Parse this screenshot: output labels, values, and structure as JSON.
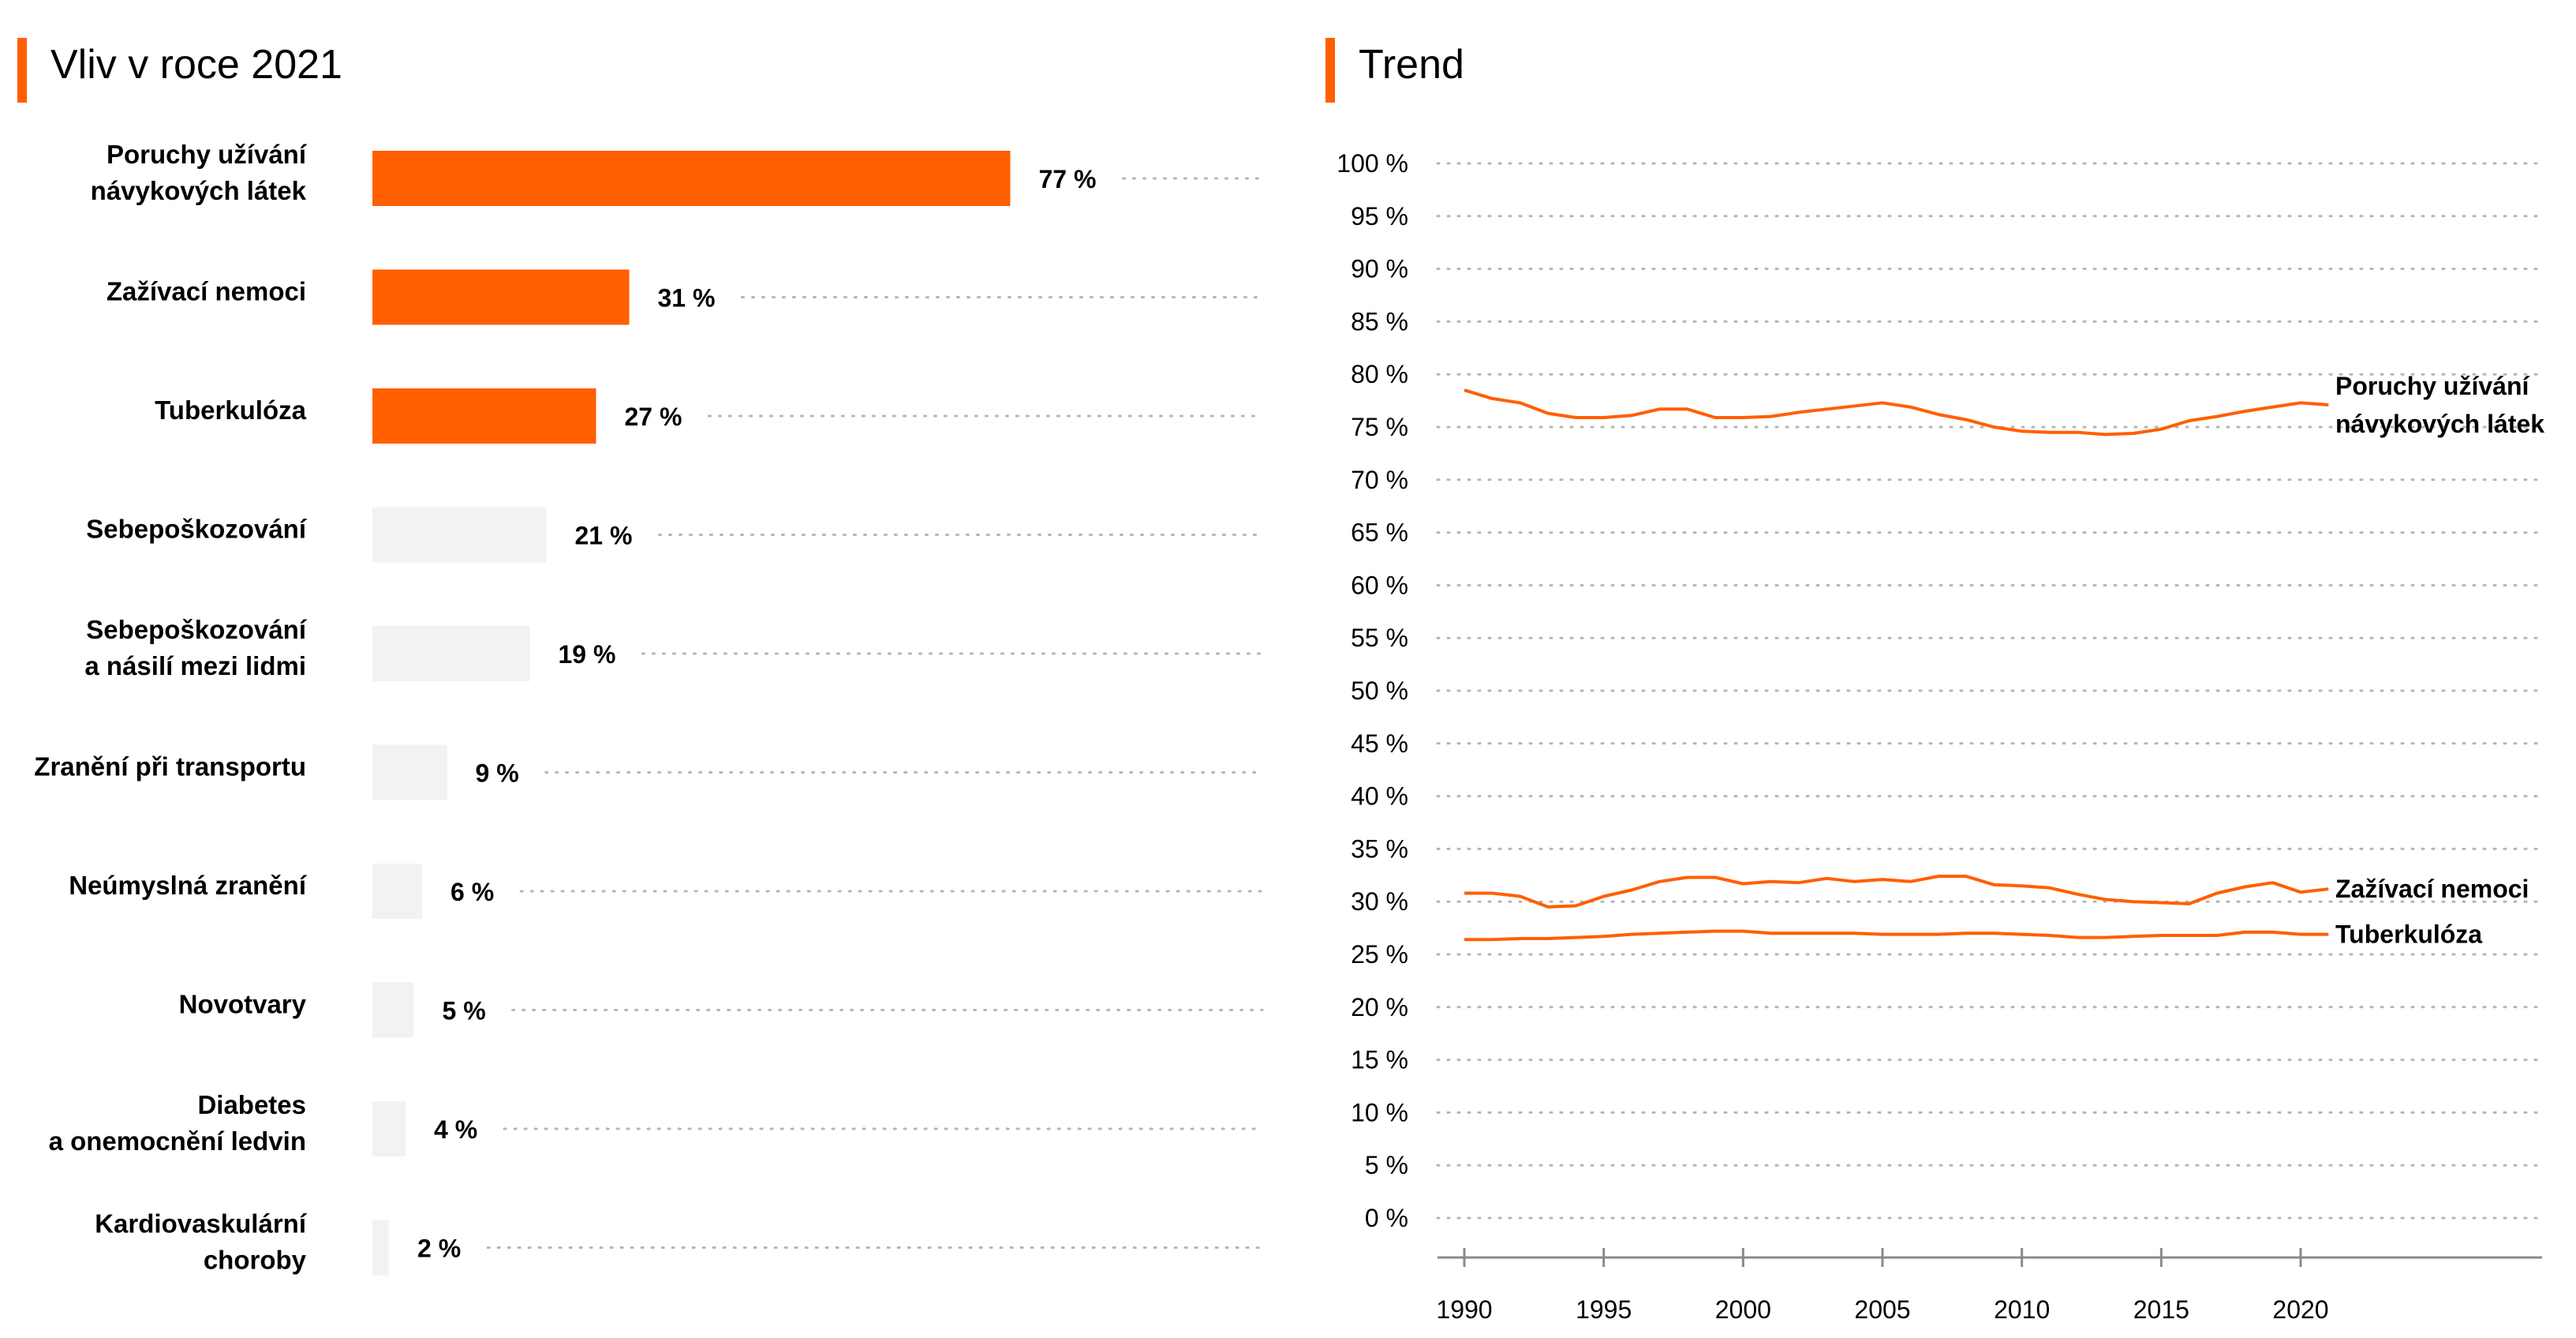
{
  "left_panel": {
    "title": "Vliv v roce 2021"
  },
  "right_panel": {
    "title": "Trend"
  },
  "colors": {
    "accent": "#ff5f00",
    "muted_bar": "#f2f2f2",
    "dots": "#b5b5b5",
    "axis": "#8a8a8a"
  },
  "chart_data": [
    {
      "type": "bar",
      "orientation": "horizontal",
      "title": "Vliv v roce 2021",
      "categories": [
        [
          "Poruchy užívání",
          "návykových látek"
        ],
        [
          "Zažívací nemoci"
        ],
        [
          "Tuberkulóza"
        ],
        [
          "Sebepoškozování"
        ],
        [
          "Sebepoškozování",
          "a násilí mezi lidmi"
        ],
        [
          "Zranění při transportu"
        ],
        [
          "Neúmyslná zranění"
        ],
        [
          "Novotvary"
        ],
        [
          "Diabetes",
          "a onemocnění ledvin"
        ],
        [
          "Kardiovaskulární",
          "choroby"
        ]
      ],
      "values": [
        77,
        31,
        27,
        21,
        19,
        9,
        6,
        5,
        4,
        2
      ],
      "value_labels": [
        "77 %",
        "31 %",
        "27 %",
        "21 %",
        "19 %",
        "9 %",
        "6 %",
        "5 %",
        "4 %",
        "2 %"
      ],
      "highlighted": [
        true,
        true,
        true,
        false,
        false,
        false,
        false,
        false,
        false,
        false
      ],
      "xlim": [
        0,
        100
      ]
    },
    {
      "type": "line",
      "title": "Trend",
      "ylim": [
        0,
        100
      ],
      "yticks": [
        0,
        5,
        10,
        15,
        20,
        25,
        30,
        35,
        40,
        45,
        50,
        55,
        60,
        65,
        70,
        75,
        80,
        85,
        90,
        95,
        100
      ],
      "ytick_labels": [
        "0 %",
        "5 %",
        "10 %",
        "15 %",
        "20 %",
        "25 %",
        "30 %",
        "35 %",
        "40 %",
        "45 %",
        "50 %",
        "55 %",
        "60 %",
        "65 %",
        "70 %",
        "75 %",
        "80 %",
        "85 %",
        "90 %",
        "95 %",
        "100 %"
      ],
      "xlim": [
        1990,
        2021
      ],
      "xticks": [
        1990,
        1995,
        2000,
        2005,
        2010,
        2015,
        2020
      ],
      "xtick_labels": [
        "1990",
        "1995",
        "2000",
        "2005",
        "2010",
        "2015",
        "2020"
      ],
      "x": [
        1990,
        1991,
        1992,
        1993,
        1994,
        1995,
        1996,
        1997,
        1998,
        1999,
        2000,
        2001,
        2002,
        2003,
        2004,
        2005,
        2006,
        2007,
        2008,
        2009,
        2010,
        2011,
        2012,
        2013,
        2014,
        2015,
        2016,
        2017,
        2018,
        2019,
        2020,
        2021
      ],
      "series": [
        {
          "name": [
            "Poruchy užívání",
            "návykových látek"
          ],
          "values": [
            78.5,
            77.7,
            77.3,
            76.3,
            75.9,
            75.9,
            76.1,
            76.7,
            76.7,
            75.9,
            75.9,
            76.0,
            76.4,
            76.7,
            77.0,
            77.3,
            76.9,
            76.2,
            75.7,
            75.0,
            74.6,
            74.5,
            74.5,
            74.3,
            74.4,
            74.8,
            75.6,
            76.0,
            76.5,
            76.9,
            77.3,
            77.1
          ]
        },
        {
          "name": [
            "Zažívací nemoci"
          ],
          "values": [
            30.8,
            30.8,
            30.5,
            29.5,
            29.6,
            30.5,
            31.1,
            31.9,
            32.3,
            32.3,
            31.7,
            31.9,
            31.8,
            32.2,
            31.9,
            32.1,
            31.9,
            32.4,
            32.4,
            31.6,
            31.5,
            31.3,
            30.7,
            30.2,
            30.0,
            29.9,
            29.8,
            30.8,
            31.4,
            31.8,
            30.9,
            31.2
          ]
        },
        {
          "name": [
            "Tuberkulóza"
          ],
          "values": [
            26.4,
            26.4,
            26.5,
            26.5,
            26.6,
            26.7,
            26.9,
            27.0,
            27.1,
            27.2,
            27.2,
            27.0,
            27.0,
            27.0,
            27.0,
            26.9,
            26.9,
            26.9,
            27.0,
            27.0,
            26.9,
            26.8,
            26.6,
            26.6,
            26.7,
            26.8,
            26.8,
            26.8,
            27.1,
            27.1,
            26.9,
            26.9
          ]
        }
      ]
    }
  ]
}
